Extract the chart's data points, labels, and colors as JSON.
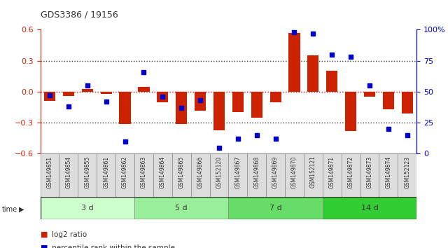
{
  "title": "GDS3386 / 19156",
  "samples": [
    "GSM149851",
    "GSM149854",
    "GSM149855",
    "GSM149861",
    "GSM149862",
    "GSM149863",
    "GSM149864",
    "GSM149865",
    "GSM149866",
    "GSM152120",
    "GSM149867",
    "GSM149868",
    "GSM149869",
    "GSM149870",
    "GSM152121",
    "GSM149871",
    "GSM149872",
    "GSM149873",
    "GSM149874",
    "GSM152123"
  ],
  "log2_ratio": [
    -0.09,
    -0.04,
    0.03,
    -0.02,
    -0.31,
    0.05,
    -0.1,
    -0.31,
    -0.18,
    -0.37,
    -0.2,
    -0.25,
    -0.1,
    0.57,
    0.35,
    0.2,
    -0.38,
    -0.05,
    -0.17,
    -0.21
  ],
  "percentile_rank": [
    47,
    38,
    55,
    42,
    10,
    66,
    46,
    37,
    43,
    5,
    12,
    15,
    12,
    98,
    97,
    80,
    78,
    55,
    20,
    15
  ],
  "groups": [
    {
      "label": "3 d",
      "start": 0,
      "end": 5,
      "color": "#ccffcc"
    },
    {
      "label": "5 d",
      "start": 5,
      "end": 10,
      "color": "#99ee99"
    },
    {
      "label": "7 d",
      "start": 10,
      "end": 15,
      "color": "#66dd66"
    },
    {
      "label": "14 d",
      "start": 15,
      "end": 20,
      "color": "#33cc33"
    }
  ],
  "bar_color": "#cc2200",
  "dot_color": "#0000cc",
  "zero_line_color": "#cc0000",
  "dotted_line_color": "#333333",
  "bg_color": "#ffffff",
  "ylim_left": [
    -0.6,
    0.6
  ],
  "ylim_right": [
    0,
    100
  ],
  "yticks_left": [
    -0.6,
    -0.3,
    0.0,
    0.3,
    0.6
  ],
  "yticks_right": [
    0,
    25,
    50,
    75,
    100
  ],
  "legend_items": [
    {
      "label": "log2 ratio",
      "color": "#cc2200"
    },
    {
      "label": "percentile rank within the sample",
      "color": "#0000cc"
    }
  ]
}
